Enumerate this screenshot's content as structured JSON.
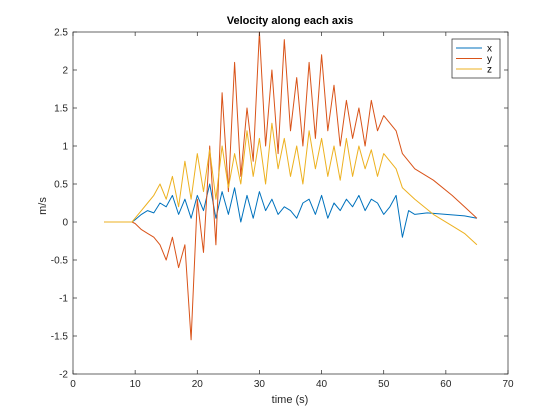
{
  "chart_data": {
    "type": "line",
    "title": "Velocity along each axis",
    "xlabel": "time (s)",
    "ylabel": "m/s",
    "xlim": [
      0,
      70
    ],
    "ylim": [
      -2,
      2.5
    ],
    "xticks": [
      0,
      10,
      20,
      30,
      40,
      50,
      60,
      70
    ],
    "yticks": [
      -2,
      -1.5,
      -1,
      -0.5,
      0,
      0.5,
      1,
      1.5,
      2,
      2.5
    ],
    "xtick_labels": [
      "0",
      "10",
      "20",
      "30",
      "40",
      "50",
      "60",
      "70"
    ],
    "ytick_labels": [
      "-2",
      "-1.5",
      "-1",
      "-0.5",
      "0",
      "0.5",
      "1",
      "1.5",
      "2",
      "2.5"
    ],
    "grid": false,
    "legend_position": "top-right",
    "series": [
      {
        "name": "x",
        "color": "#0072BD",
        "x": [
          5,
          9.5,
          10,
          11,
          12,
          13,
          14,
          15,
          16,
          17,
          18,
          19,
          20,
          21,
          22,
          23,
          24,
          25,
          26,
          27,
          28,
          29,
          30,
          31,
          32,
          33,
          34,
          35,
          36,
          37,
          38,
          39,
          40,
          41,
          42,
          43,
          44,
          45,
          46,
          47,
          48,
          49,
          50,
          51,
          52,
          53,
          54,
          55,
          57,
          60,
          63,
          65
        ],
        "y": [
          0,
          0,
          0.03,
          0.1,
          0.15,
          0.12,
          0.25,
          0.2,
          0.35,
          0.1,
          0.3,
          0.05,
          0.35,
          0.15,
          0.5,
          0.05,
          0.4,
          0.1,
          0.45,
          0.0,
          0.35,
          0.05,
          0.4,
          0.15,
          0.3,
          0.1,
          0.2,
          0.15,
          0.05,
          0.25,
          0.3,
          0.1,
          0.35,
          0.05,
          0.25,
          0.15,
          0.3,
          0.2,
          0.35,
          0.15,
          0.3,
          0.25,
          0.1,
          0.2,
          0.35,
          -0.2,
          0.15,
          0.1,
          0.12,
          0.1,
          0.08,
          0.05
        ]
      },
      {
        "name": "y",
        "color": "#D95319",
        "x": [
          5,
          9.5,
          10,
          11,
          12,
          13,
          14,
          15,
          16,
          17,
          18,
          19,
          20,
          21,
          22,
          23,
          24,
          25,
          26,
          27,
          28,
          29,
          30,
          31,
          32,
          33,
          34,
          35,
          36,
          37,
          38,
          39,
          40,
          41,
          42,
          43,
          44,
          45,
          46,
          47,
          48,
          49,
          50,
          51,
          52,
          53,
          54,
          55,
          58,
          61,
          63,
          65
        ],
        "y": [
          0,
          0,
          -0.02,
          -0.1,
          -0.15,
          -0.2,
          -0.3,
          -0.5,
          -0.2,
          -0.6,
          -0.3,
          -1.55,
          0.3,
          -0.4,
          1.0,
          -0.3,
          1.7,
          0.4,
          2.1,
          0.6,
          1.5,
          0.8,
          2.5,
          1.0,
          2.0,
          0.9,
          2.4,
          1.2,
          1.9,
          1.0,
          2.1,
          1.1,
          2.2,
          1.2,
          1.8,
          1.0,
          1.6,
          1.1,
          1.5,
          1.0,
          1.6,
          1.2,
          1.4,
          1.3,
          1.2,
          0.9,
          0.8,
          0.7,
          0.55,
          0.35,
          0.2,
          0.05
        ]
      },
      {
        "name": "z",
        "color": "#EDB120",
        "x": [
          5,
          9.5,
          10,
          11,
          12,
          13,
          14,
          15,
          16,
          17,
          18,
          19,
          20,
          21,
          22,
          23,
          24,
          25,
          26,
          27,
          28,
          29,
          30,
          31,
          32,
          33,
          34,
          35,
          36,
          37,
          38,
          39,
          40,
          41,
          42,
          43,
          44,
          45,
          46,
          47,
          48,
          49,
          50,
          51,
          52,
          53,
          55,
          58,
          61,
          63,
          65
        ],
        "y": [
          0,
          0,
          0.05,
          0.15,
          0.25,
          0.35,
          0.5,
          0.3,
          0.6,
          0.2,
          0.8,
          0.3,
          0.9,
          0.4,
          0.95,
          0.3,
          1.0,
          0.45,
          0.9,
          0.5,
          1.2,
          0.6,
          1.1,
          0.5,
          1.3,
          0.7,
          1.1,
          0.6,
          1.0,
          0.5,
          1.2,
          0.7,
          1.1,
          0.6,
          1.0,
          0.55,
          1.1,
          0.6,
          1.0,
          0.7,
          0.95,
          0.6,
          0.9,
          0.8,
          0.7,
          0.45,
          0.3,
          0.1,
          -0.05,
          -0.15,
          -0.3
        ]
      }
    ]
  }
}
